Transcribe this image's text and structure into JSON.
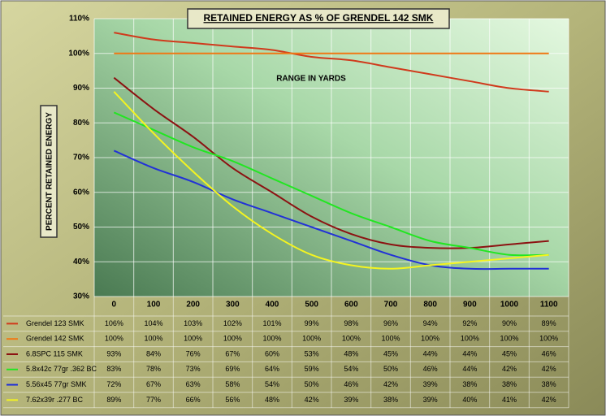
{
  "chart_data": {
    "type": "line",
    "title": "RETAINED ENERGY AS % OF GRENDEL 142 SMK",
    "y_label": "PERCENT RETAINED ENERGY",
    "annotation": "RANGE IN YARDS",
    "categories": [
      "0",
      "100",
      "200",
      "300",
      "400",
      "500",
      "600",
      "700",
      "800",
      "900",
      "1000",
      "1100"
    ],
    "ylim": [
      30,
      110
    ],
    "yticks": [
      {
        "value": 30,
        "label": "30%"
      },
      {
        "value": 40,
        "label": "40%"
      },
      {
        "value": 50,
        "label": "50%"
      },
      {
        "value": 60,
        "label": "60%"
      },
      {
        "value": 70,
        "label": "70%"
      },
      {
        "value": 80,
        "label": "80%"
      },
      {
        "value": 90,
        "label": "90%"
      },
      {
        "value": 100,
        "label": "100%"
      },
      {
        "value": 110,
        "label": "110%"
      }
    ],
    "grid": true,
    "series": [
      {
        "name": "Grendel 123 SMK",
        "color": "#d03a1c",
        "values": [
          106,
          104,
          103,
          102,
          101,
          99,
          98,
          96,
          94,
          92,
          90,
          89
        ],
        "value_labels": [
          "106%",
          "104%",
          "103%",
          "102%",
          "101%",
          "99%",
          "98%",
          "96%",
          "94%",
          "92%",
          "90%",
          "89%"
        ]
      },
      {
        "name": "Grendel 142 SMK",
        "color": "#f07814",
        "values": [
          100,
          100,
          100,
          100,
          100,
          100,
          100,
          100,
          100,
          100,
          100,
          100
        ],
        "value_labels": [
          "100%",
          "100%",
          "100%",
          "100%",
          "100%",
          "100%",
          "100%",
          "100%",
          "100%",
          "100%",
          "100%",
          "100%"
        ]
      },
      {
        "name": "6.8SPC 115 SMK",
        "color": "#8c1212",
        "values": [
          93,
          84,
          76,
          67,
          60,
          53,
          48,
          45,
          44,
          44,
          45,
          46
        ],
        "value_labels": [
          "93%",
          "84%",
          "76%",
          "67%",
          "60%",
          "53%",
          "48%",
          "45%",
          "44%",
          "44%",
          "45%",
          "46%"
        ]
      },
      {
        "name": "5.8x42c 77gr .362 BC",
        "color": "#22e622",
        "values": [
          83,
          78,
          73,
          69,
          64,
          59,
          54,
          50,
          46,
          44,
          42,
          42
        ],
        "value_labels": [
          "83%",
          "78%",
          "73%",
          "69%",
          "64%",
          "59%",
          "54%",
          "50%",
          "46%",
          "44%",
          "42%",
          "42%"
        ]
      },
      {
        "name": "5.56x45 77gr SMK",
        "color": "#2232d6",
        "values": [
          72,
          67,
          63,
          58,
          54,
          50,
          46,
          42,
          39,
          38,
          38,
          38
        ],
        "value_labels": [
          "72%",
          "67%",
          "63%",
          "58%",
          "54%",
          "50%",
          "46%",
          "42%",
          "39%",
          "38%",
          "38%",
          "38%"
        ]
      },
      {
        "name": "7.62x39r .277 BC",
        "color": "#f4f420",
        "values": [
          89,
          77,
          66,
          56,
          48,
          42,
          39,
          38,
          39,
          40,
          41,
          42
        ],
        "value_labels": [
          "89%",
          "77%",
          "66%",
          "56%",
          "48%",
          "42%",
          "39%",
          "38%",
          "39%",
          "40%",
          "41%",
          "42%"
        ]
      }
    ]
  }
}
